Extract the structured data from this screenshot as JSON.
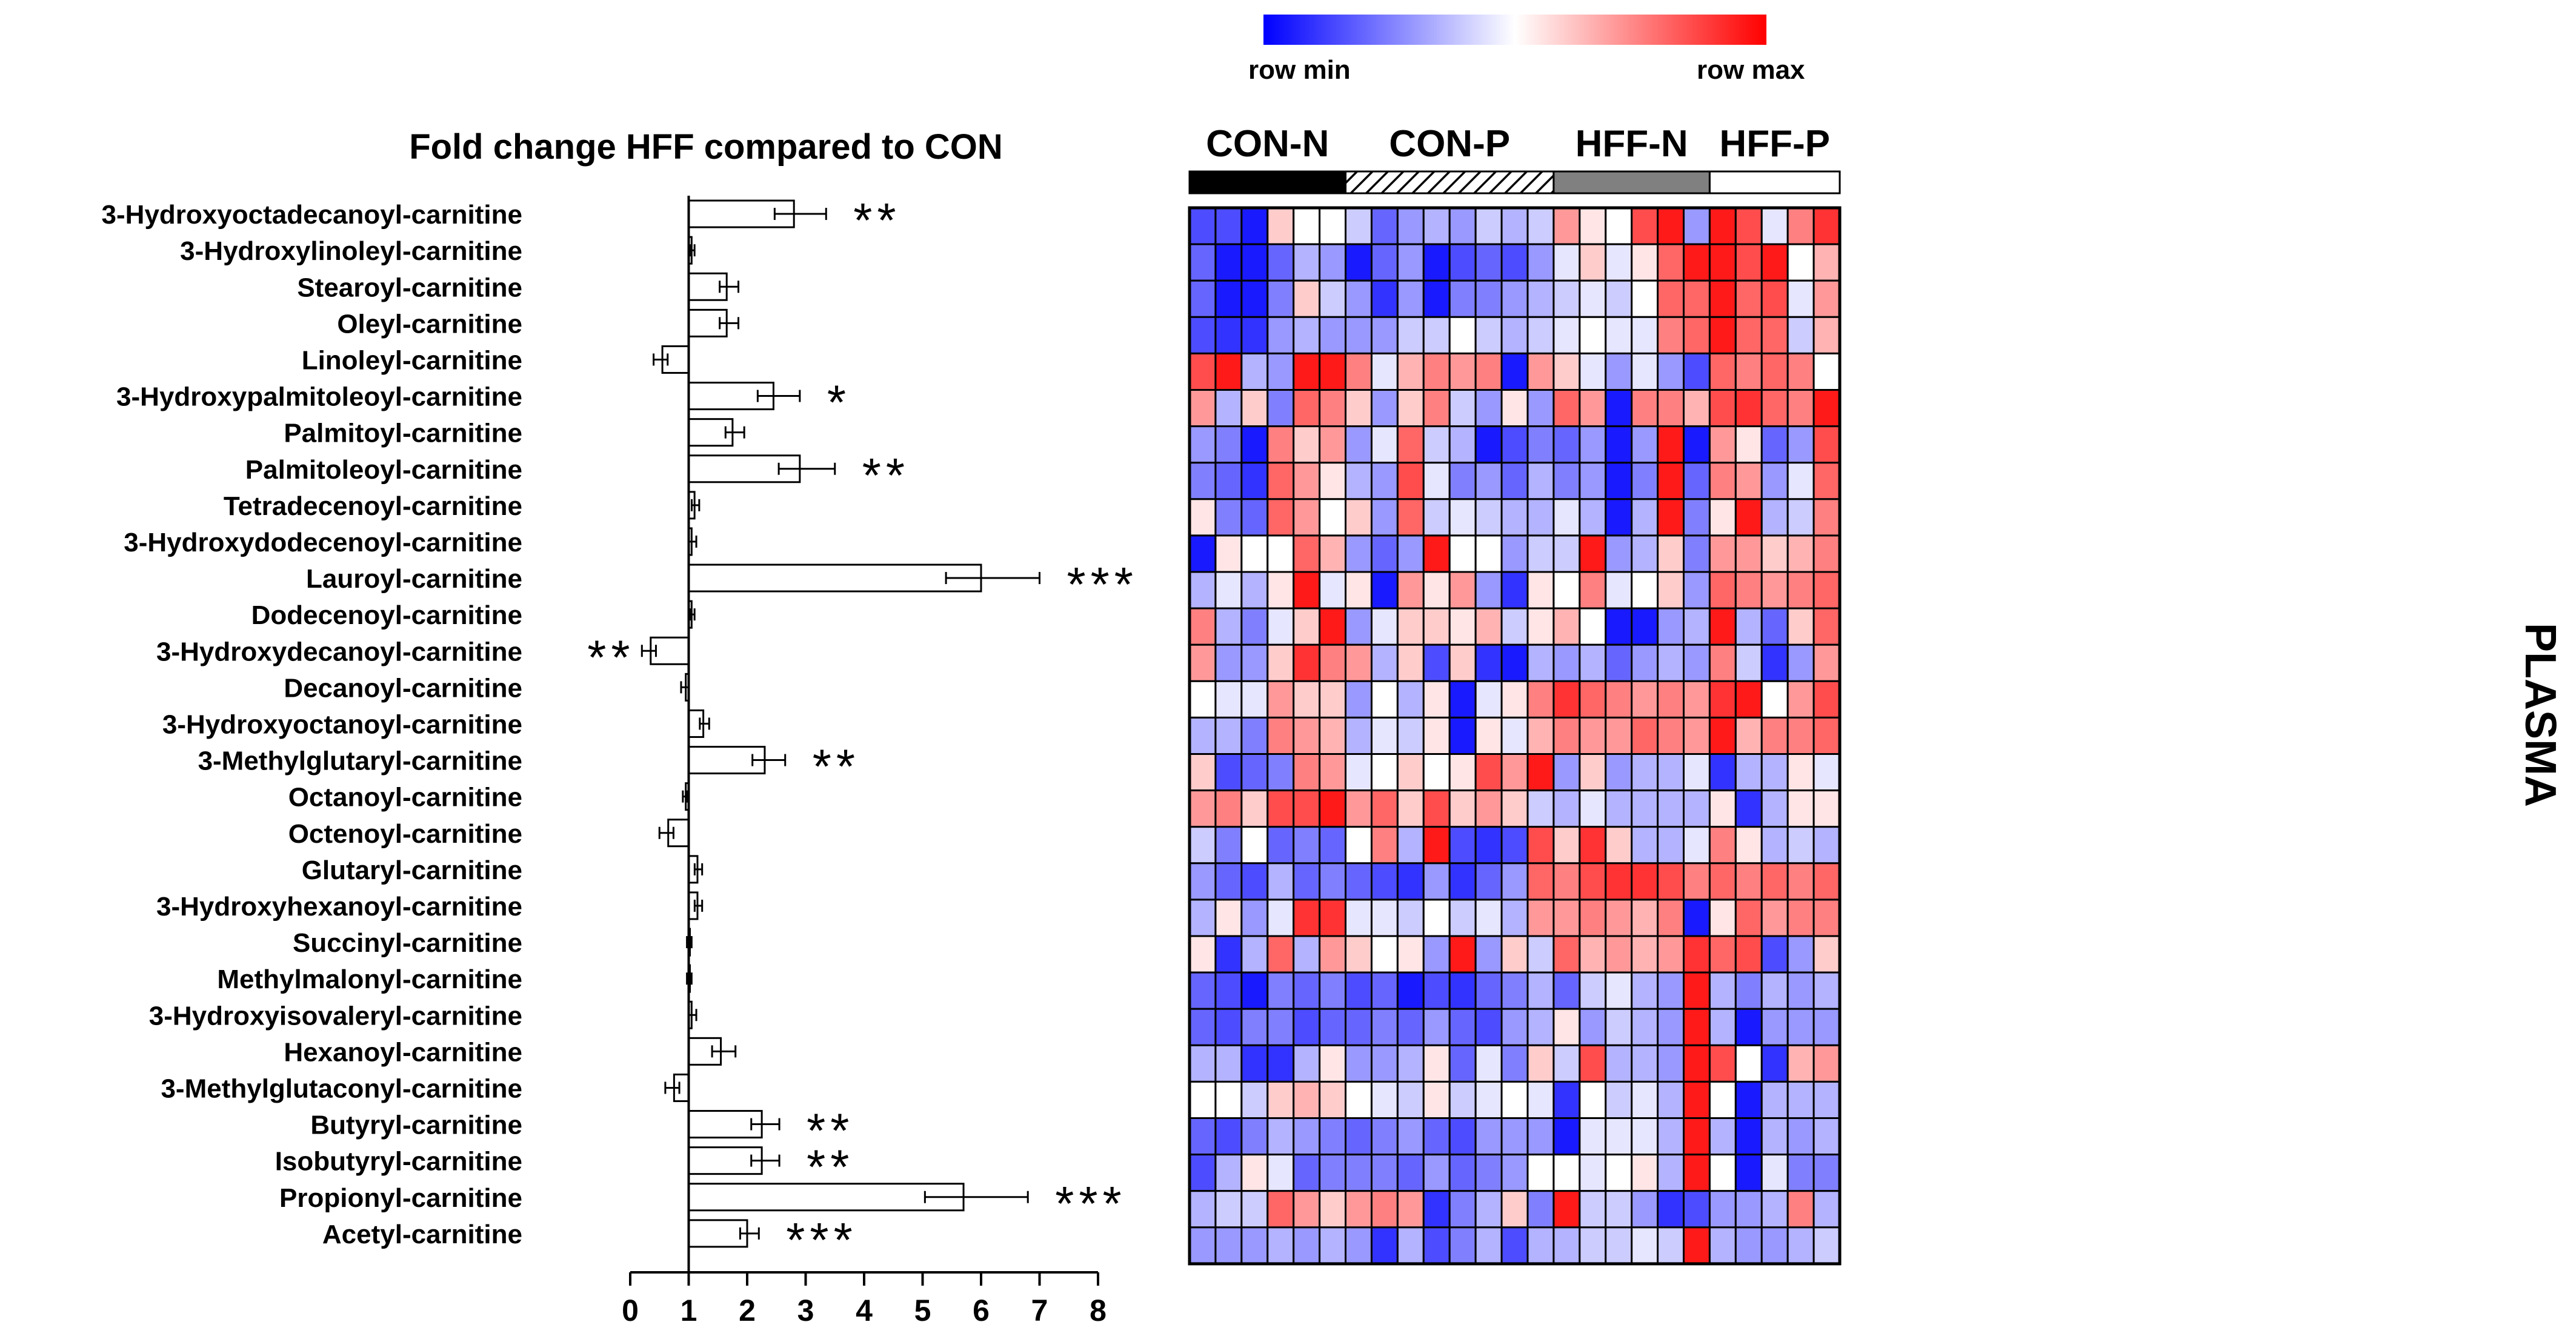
{
  "chart_data": [
    {
      "type": "bar",
      "orientation": "horizontal",
      "title": "Fold change HFF compared to CON",
      "reference_line": 1,
      "xlim": [
        0,
        8
      ],
      "xticks": [
        "0",
        "1",
        "2",
        "3",
        "4",
        "5",
        "6",
        "7",
        "8"
      ],
      "categories": [
        "3-Hydroxyoctadecanoyl-carnitine",
        "3-Hydroxylinoleyl-carnitine",
        "Stearoyl-carnitine",
        "Oleyl-carnitine",
        "Linoleyl-carnitine",
        "3-Hydroxypalmitoleoyl-carnitine",
        "Palmitoyl-carnitine",
        "Palmitoleoyl-carnitine",
        "Tetradecenoyl-carnitine",
        "3-Hydroxydodecenoyl-carnitine",
        "Lauroyl-carnitine",
        "Dodecenoyl-carnitine",
        "3-Hydroxydecanoyl-carnitine",
        "Decanoyl-carnitine",
        "3-Hydroxyoctanoyl-carnitine",
        "3-Methylglutaryl-carnitine",
        "Octanoyl-carnitine",
        "Octenoyl-carnitine",
        "Glutaryl-carnitine",
        "3-Hydroxyhexanoyl-carnitine",
        "Succinyl-carnitine",
        "Methylmalonyl-carnitine",
        "3-Hydroxyisovaleryl-carnitine",
        "Hexanoyl-carnitine",
        "3-Methylglutaconyl-carnitine",
        "Butyryl-carnitine",
        "Isobutyryl-carnitine",
        "Propionyl-carnitine",
        "Acetyl-carnitine"
      ],
      "values": [
        2.8,
        1.05,
        1.65,
        1.65,
        0.55,
        2.45,
        1.75,
        2.9,
        1.1,
        1.05,
        6.0,
        1.05,
        0.35,
        0.95,
        1.25,
        2.3,
        0.95,
        0.65,
        1.15,
        1.15,
        1.0,
        1.0,
        1.05,
        1.55,
        0.75,
        2.25,
        2.25,
        5.7,
        2.0
      ],
      "errors": [
        0.55,
        0.05,
        0.2,
        0.2,
        0.15,
        0.45,
        0.2,
        0.6,
        0.08,
        0.08,
        1.0,
        0.05,
        0.15,
        0.08,
        0.1,
        0.35,
        0.05,
        0.15,
        0.08,
        0.08,
        0.05,
        0.05,
        0.08,
        0.25,
        0.15,
        0.3,
        0.3,
        1.1,
        0.2
      ],
      "significance": [
        "**",
        "",
        "",
        "",
        "",
        "*",
        "",
        "**",
        "",
        "",
        "***",
        "",
        "**",
        "",
        "",
        "**",
        "",
        "",
        "",
        "",
        "",
        "",
        "",
        "",
        "",
        "**",
        "**",
        "***",
        "***"
      ]
    },
    {
      "type": "heatmap",
      "legend": {
        "min_label": "row min",
        "max_label": "row max",
        "colors": [
          "#0000ff",
          "#ffffff",
          "#ff0000"
        ]
      },
      "groups": [
        {
          "name": "CON-N",
          "count": 6,
          "pattern": "solid-black"
        },
        {
          "name": "CON-P",
          "count": 8,
          "pattern": "hatched"
        },
        {
          "name": "HFF-N",
          "count": 6,
          "pattern": "solid-gray"
        },
        {
          "name": "HFF-P",
          "count": 5,
          "pattern": "white"
        }
      ],
      "side_label": "PLASMA",
      "scale": "0 = row min (blue), 1 = row max (red)",
      "rows": [
        [
          0.15,
          0.15,
          0.05,
          0.6,
          0.5,
          0.5,
          0.4,
          0.2,
          0.3,
          0.35,
          0.3,
          0.4,
          0.35,
          0.4,
          0.7,
          0.55,
          0.5,
          0.85,
          0.95,
          0.3,
          0.95,
          0.85,
          0.45,
          0.75,
          0.9
        ],
        [
          0.2,
          0.05,
          0.05,
          0.2,
          0.35,
          0.3,
          0.05,
          0.2,
          0.3,
          0.05,
          0.15,
          0.2,
          0.15,
          0.3,
          0.45,
          0.6,
          0.45,
          0.55,
          0.8,
          0.95,
          0.95,
          0.85,
          0.95,
          0.5,
          0.65
        ],
        [
          0.2,
          0.05,
          0.05,
          0.25,
          0.6,
          0.4,
          0.3,
          0.1,
          0.3,
          0.05,
          0.25,
          0.25,
          0.3,
          0.35,
          0.4,
          0.45,
          0.4,
          0.5,
          0.8,
          0.8,
          0.95,
          0.8,
          0.85,
          0.45,
          0.7
        ],
        [
          0.15,
          0.1,
          0.1,
          0.3,
          0.35,
          0.3,
          0.3,
          0.3,
          0.4,
          0.4,
          0.5,
          0.4,
          0.35,
          0.4,
          0.45,
          0.5,
          0.45,
          0.45,
          0.75,
          0.8,
          0.95,
          0.8,
          0.8,
          0.4,
          0.65
        ],
        [
          0.85,
          0.95,
          0.35,
          0.3,
          0.95,
          0.95,
          0.75,
          0.45,
          0.65,
          0.75,
          0.7,
          0.75,
          0.05,
          0.7,
          0.6,
          0.45,
          0.3,
          0.45,
          0.3,
          0.15,
          0.8,
          0.75,
          0.8,
          0.75,
          0.5
        ],
        [
          0.7,
          0.35,
          0.6,
          0.25,
          0.8,
          0.75,
          0.6,
          0.3,
          0.6,
          0.75,
          0.4,
          0.3,
          0.55,
          0.3,
          0.8,
          0.7,
          0.05,
          0.75,
          0.75,
          0.65,
          0.85,
          0.9,
          0.8,
          0.75,
          0.95
        ],
        [
          0.3,
          0.25,
          0.05,
          0.75,
          0.6,
          0.7,
          0.3,
          0.45,
          0.8,
          0.4,
          0.35,
          0.05,
          0.15,
          0.25,
          0.2,
          0.3,
          0.05,
          0.3,
          0.95,
          0.05,
          0.7,
          0.55,
          0.2,
          0.3,
          0.85
        ],
        [
          0.25,
          0.2,
          0.1,
          0.8,
          0.7,
          0.55,
          0.35,
          0.3,
          0.85,
          0.45,
          0.25,
          0.3,
          0.2,
          0.35,
          0.25,
          0.3,
          0.05,
          0.25,
          0.95,
          0.2,
          0.75,
          0.7,
          0.3,
          0.45,
          0.8
        ],
        [
          0.55,
          0.25,
          0.2,
          0.8,
          0.7,
          0.5,
          0.6,
          0.3,
          0.8,
          0.4,
          0.45,
          0.4,
          0.35,
          0.35,
          0.45,
          0.35,
          0.05,
          0.35,
          0.95,
          0.25,
          0.55,
          0.95,
          0.35,
          0.4,
          0.75
        ],
        [
          0.05,
          0.55,
          0.5,
          0.5,
          0.8,
          0.65,
          0.3,
          0.2,
          0.3,
          0.95,
          0.5,
          0.5,
          0.3,
          0.4,
          0.4,
          0.95,
          0.3,
          0.35,
          0.6,
          0.25,
          0.7,
          0.7,
          0.6,
          0.65,
          0.75
        ],
        [
          0.35,
          0.45,
          0.35,
          0.55,
          0.95,
          0.45,
          0.55,
          0.05,
          0.7,
          0.55,
          0.7,
          0.3,
          0.1,
          0.55,
          0.5,
          0.75,
          0.45,
          0.5,
          0.6,
          0.3,
          0.8,
          0.75,
          0.7,
          0.75,
          0.8
        ],
        [
          0.75,
          0.35,
          0.25,
          0.45,
          0.6,
          0.95,
          0.3,
          0.45,
          0.6,
          0.6,
          0.55,
          0.65,
          0.4,
          0.55,
          0.65,
          0.5,
          0.05,
          0.05,
          0.3,
          0.35,
          0.95,
          0.35,
          0.2,
          0.6,
          0.8
        ],
        [
          0.7,
          0.3,
          0.3,
          0.6,
          0.9,
          0.75,
          0.7,
          0.35,
          0.6,
          0.15,
          0.6,
          0.1,
          0.05,
          0.35,
          0.3,
          0.35,
          0.2,
          0.3,
          0.35,
          0.3,
          0.75,
          0.4,
          0.1,
          0.3,
          0.7
        ],
        [
          0.5,
          0.45,
          0.45,
          0.7,
          0.6,
          0.6,
          0.3,
          0.5,
          0.35,
          0.55,
          0.05,
          0.45,
          0.55,
          0.75,
          0.9,
          0.8,
          0.75,
          0.7,
          0.75,
          0.7,
          0.9,
          0.95,
          0.5,
          0.7,
          0.85
        ],
        [
          0.35,
          0.35,
          0.25,
          0.75,
          0.7,
          0.65,
          0.35,
          0.45,
          0.4,
          0.55,
          0.05,
          0.55,
          0.45,
          0.65,
          0.75,
          0.7,
          0.7,
          0.8,
          0.75,
          0.7,
          0.95,
          0.65,
          0.75,
          0.75,
          0.8
        ],
        [
          0.6,
          0.15,
          0.2,
          0.25,
          0.75,
          0.7,
          0.45,
          0.5,
          0.6,
          0.5,
          0.55,
          0.85,
          0.7,
          0.95,
          0.3,
          0.6,
          0.3,
          0.35,
          0.35,
          0.45,
          0.1,
          0.35,
          0.35,
          0.55,
          0.45
        ],
        [
          0.7,
          0.75,
          0.6,
          0.85,
          0.85,
          0.95,
          0.7,
          0.8,
          0.6,
          0.85,
          0.6,
          0.7,
          0.6,
          0.4,
          0.35,
          0.45,
          0.35,
          0.35,
          0.35,
          0.35,
          0.55,
          0.1,
          0.35,
          0.55,
          0.55
        ],
        [
          0.4,
          0.25,
          0.5,
          0.2,
          0.25,
          0.2,
          0.5,
          0.75,
          0.35,
          0.95,
          0.15,
          0.1,
          0.15,
          0.85,
          0.6,
          0.9,
          0.6,
          0.35,
          0.35,
          0.45,
          0.75,
          0.55,
          0.35,
          0.4,
          0.35
        ],
        [
          0.3,
          0.2,
          0.15,
          0.35,
          0.2,
          0.25,
          0.2,
          0.15,
          0.1,
          0.3,
          0.1,
          0.2,
          0.3,
          0.8,
          0.75,
          0.85,
          0.9,
          0.9,
          0.85,
          0.75,
          0.8,
          0.75,
          0.8,
          0.75,
          0.8
        ],
        [
          0.35,
          0.55,
          0.3,
          0.45,
          0.9,
          0.9,
          0.45,
          0.45,
          0.4,
          0.5,
          0.4,
          0.45,
          0.35,
          0.7,
          0.7,
          0.75,
          0.7,
          0.65,
          0.75,
          0.05,
          0.55,
          0.8,
          0.7,
          0.75,
          0.75
        ],
        [
          0.55,
          0.1,
          0.35,
          0.8,
          0.35,
          0.7,
          0.6,
          0.5,
          0.55,
          0.3,
          0.95,
          0.3,
          0.6,
          0.4,
          0.8,
          0.65,
          0.7,
          0.65,
          0.7,
          0.9,
          0.8,
          0.85,
          0.15,
          0.3,
          0.6
        ],
        [
          0.2,
          0.15,
          0.05,
          0.25,
          0.2,
          0.25,
          0.15,
          0.2,
          0.05,
          0.15,
          0.1,
          0.2,
          0.25,
          0.35,
          0.2,
          0.4,
          0.45,
          0.35,
          0.3,
          0.95,
          0.35,
          0.25,
          0.35,
          0.3,
          0.35
        ],
        [
          0.2,
          0.15,
          0.25,
          0.25,
          0.15,
          0.2,
          0.2,
          0.25,
          0.2,
          0.3,
          0.2,
          0.15,
          0.3,
          0.35,
          0.55,
          0.3,
          0.4,
          0.35,
          0.3,
          0.95,
          0.35,
          0.05,
          0.3,
          0.3,
          0.3
        ],
        [
          0.35,
          0.35,
          0.1,
          0.1,
          0.35,
          0.55,
          0.3,
          0.3,
          0.35,
          0.55,
          0.2,
          0.45,
          0.25,
          0.6,
          0.4,
          0.85,
          0.35,
          0.35,
          0.3,
          0.95,
          0.85,
          0.5,
          0.1,
          0.65,
          0.7
        ],
        [
          0.5,
          0.5,
          0.4,
          0.6,
          0.65,
          0.6,
          0.5,
          0.45,
          0.4,
          0.55,
          0.4,
          0.45,
          0.5,
          0.45,
          0.1,
          0.5,
          0.4,
          0.45,
          0.35,
          0.95,
          0.5,
          0.05,
          0.35,
          0.35,
          0.35
        ],
        [
          0.2,
          0.15,
          0.25,
          0.35,
          0.3,
          0.25,
          0.2,
          0.25,
          0.3,
          0.2,
          0.15,
          0.3,
          0.3,
          0.3,
          0.05,
          0.45,
          0.45,
          0.45,
          0.35,
          0.95,
          0.35,
          0.05,
          0.35,
          0.3,
          0.35
        ],
        [
          0.15,
          0.35,
          0.55,
          0.45,
          0.2,
          0.25,
          0.25,
          0.25,
          0.2,
          0.3,
          0.2,
          0.25,
          0.3,
          0.5,
          0.5,
          0.45,
          0.5,
          0.55,
          0.35,
          0.95,
          0.5,
          0.05,
          0.45,
          0.25,
          0.25
        ],
        [
          0.35,
          0.4,
          0.4,
          0.8,
          0.7,
          0.6,
          0.7,
          0.75,
          0.7,
          0.1,
          0.25,
          0.35,
          0.6,
          0.25,
          0.95,
          0.4,
          0.4,
          0.3,
          0.1,
          0.15,
          0.3,
          0.3,
          0.35,
          0.75,
          0.35
        ],
        [
          0.3,
          0.3,
          0.3,
          0.35,
          0.3,
          0.35,
          0.3,
          0.1,
          0.35,
          0.15,
          0.25,
          0.35,
          0.15,
          0.35,
          0.35,
          0.4,
          0.4,
          0.45,
          0.4,
          0.95,
          0.35,
          0.3,
          0.3,
          0.35,
          0.4
        ]
      ]
    }
  ]
}
